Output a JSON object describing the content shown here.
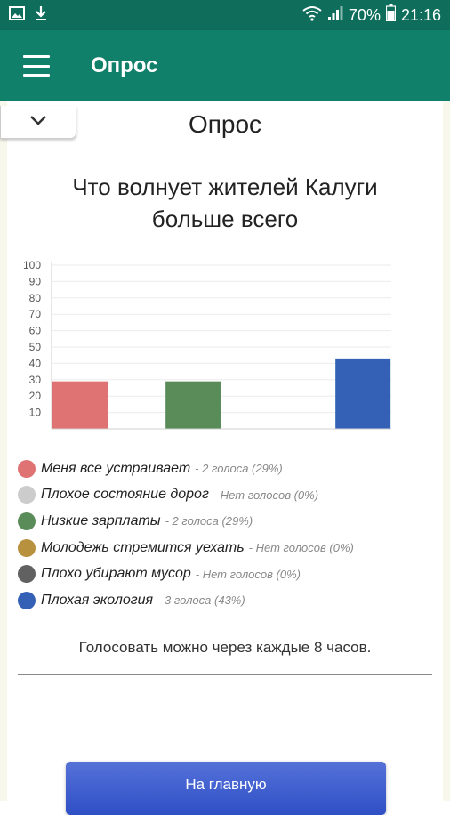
{
  "status_bar": {
    "battery": "70%",
    "time": "21:16",
    "icons": [
      "image-icon",
      "download-icon",
      "wifi-icon",
      "signal-icon",
      "battery-icon"
    ]
  },
  "app_bar": {
    "title": "Опрос",
    "menu_icon": "menu-icon"
  },
  "poll": {
    "heading": "Опрос",
    "question": "Что волнует жителей Калуги больше всего",
    "note": "Голосовать можно через каждые 8 часов.",
    "home_button": "На главную",
    "options": [
      {
        "name": "Меня все устраивает",
        "votes": "- 2 голоса (29%)",
        "color": "#df7373"
      },
      {
        "name": "Плохое состояние дорог",
        "votes": "- Нет голосов (0%)",
        "color": "#cccccc"
      },
      {
        "name": "Низкие зарплаты",
        "votes": "- 2 голоса (29%)",
        "color": "#5a8c5a"
      },
      {
        "name": "Молодежь стремится уехать",
        "votes": "- Нет голосов (0%)",
        "color": "#b8913f"
      },
      {
        "name": "Плохо убирают мусор",
        "votes": "- Нет голосов (0%)",
        "color": "#616161"
      },
      {
        "name": "Плохая экология",
        "votes": "- 3 голоса (43%)",
        "color": "#3461b5"
      }
    ]
  },
  "chart_data": {
    "type": "bar",
    "categories": [
      "Меня все устраивает",
      "Плохое состояние дорог",
      "Низкие зарплаты",
      "Молодежь стремится уехать",
      "Плохо убирают мусор",
      "Плохая экология"
    ],
    "values": [
      29,
      0,
      29,
      0,
      0,
      43
    ],
    "colors": [
      "#df7373",
      "#cccccc",
      "#5a8c5a",
      "#b8913f",
      "#616161",
      "#3461b5"
    ],
    "yticks": [
      "10",
      "20",
      "30",
      "40",
      "50",
      "60",
      "70",
      "80",
      "90",
      "100"
    ],
    "ylim": [
      0,
      100
    ],
    "grid": true,
    "legend_position": "bottom"
  }
}
